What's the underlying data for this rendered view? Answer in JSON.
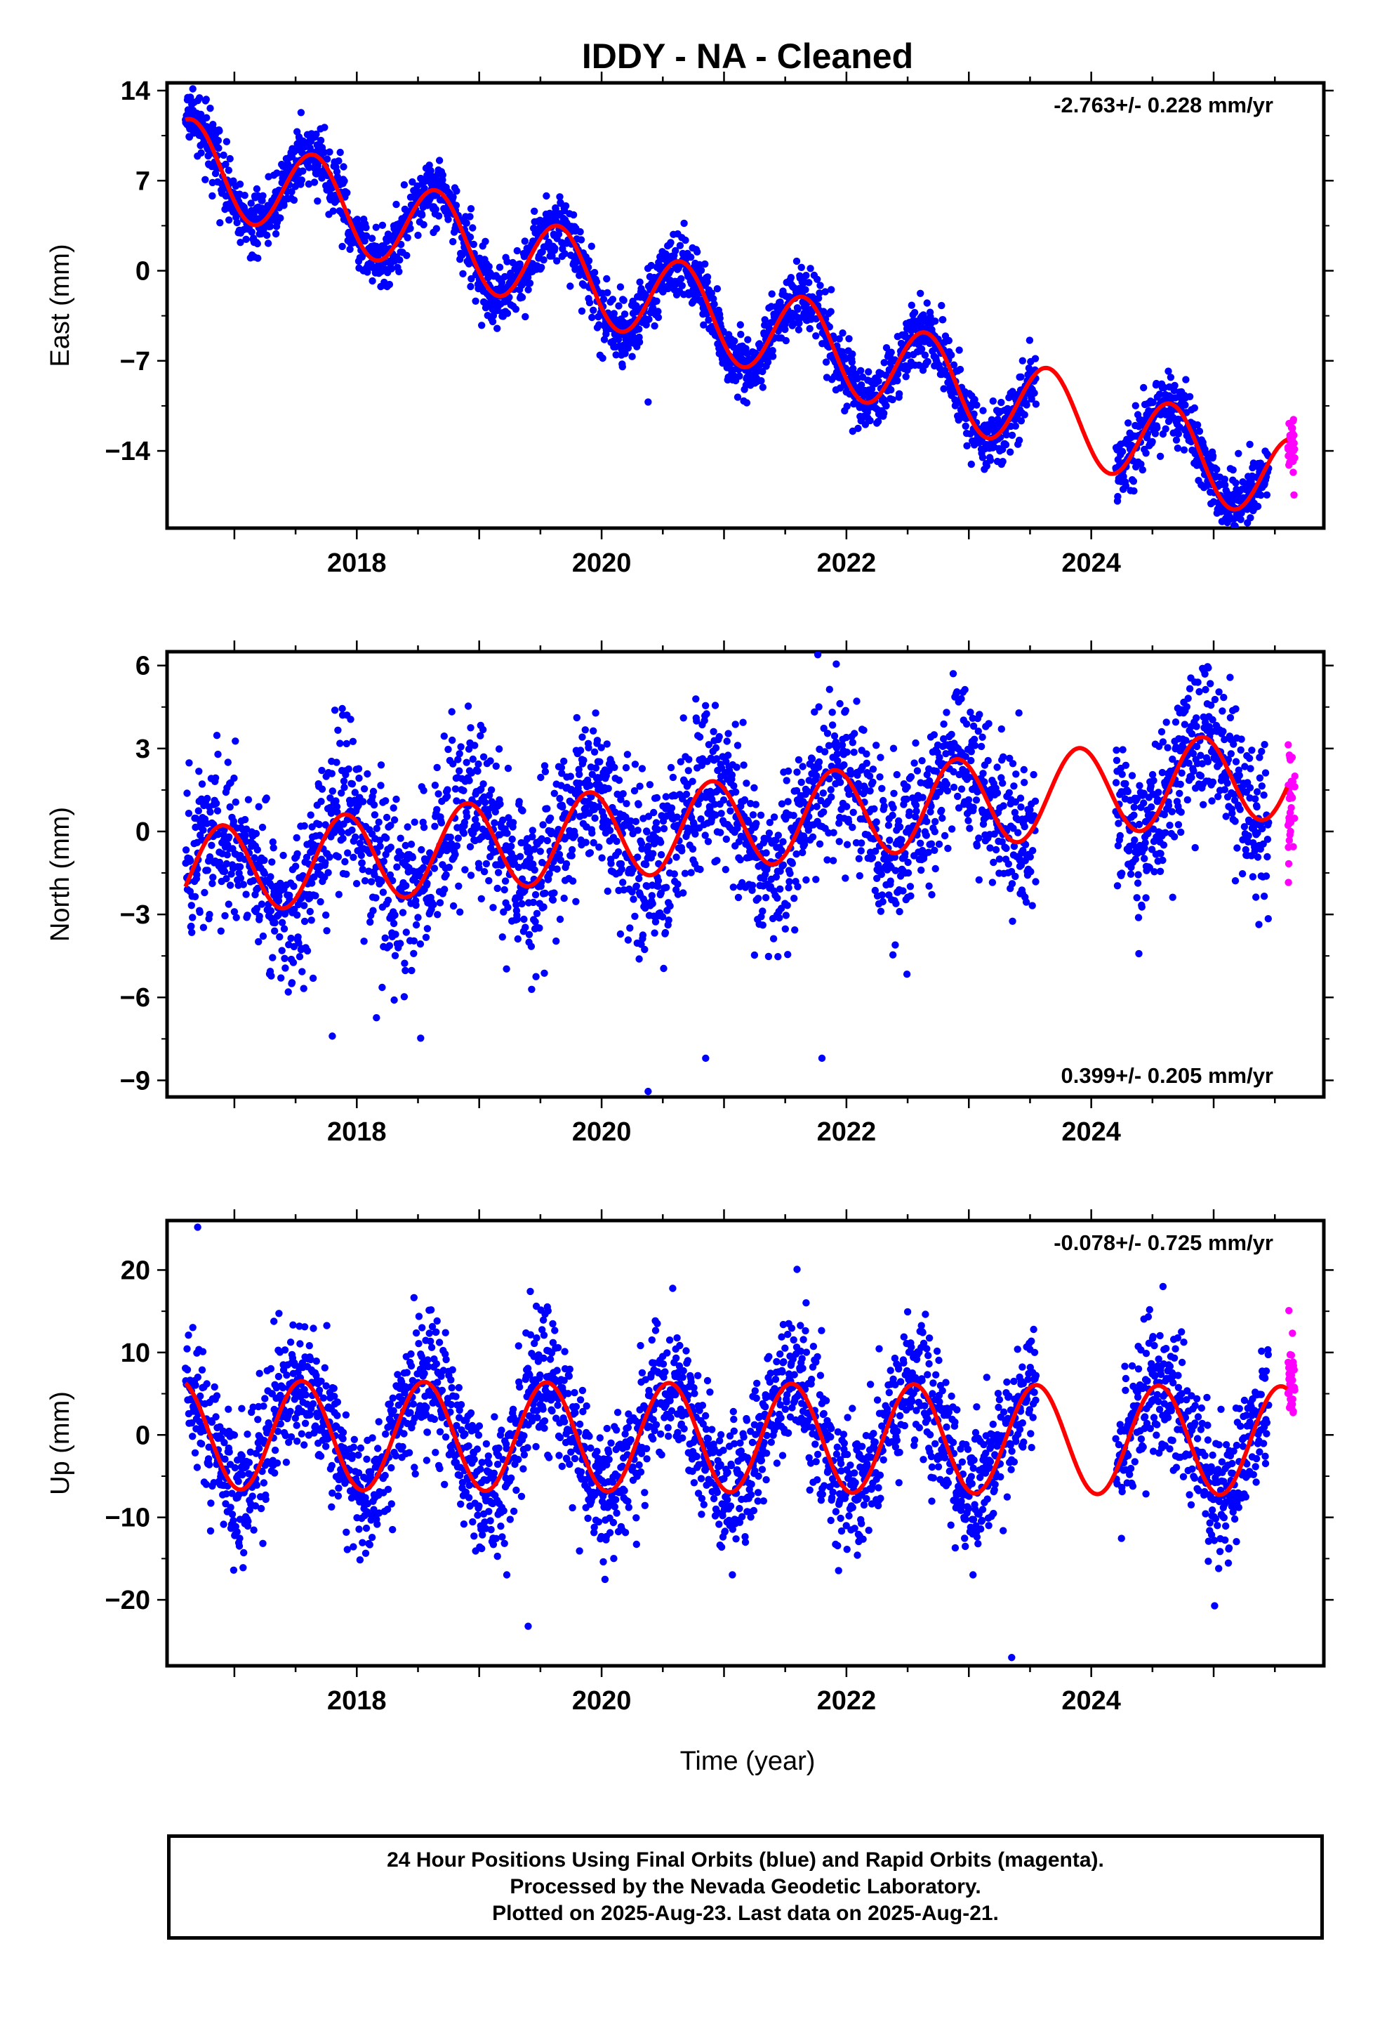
{
  "title": "IDDY  - NA - Cleaned",
  "xlabel": "Time (year)",
  "colors": {
    "final": "#0000ff",
    "rapid": "#ff00ff",
    "model": "#ff0000",
    "axes": "#000000"
  },
  "footer": {
    "line1": "24 Hour Positions Using Final Orbits (blue) and Rapid Orbits (magenta).",
    "line2": "Processed by the Nevada Geodetic Laboratory.",
    "line3": "Plotted on 2025-Aug-23. Last data on 2025-Aug-21."
  },
  "chart_data": [
    {
      "type": "scatter",
      "id": "east",
      "ylabel": "East (mm)",
      "rate_label": "-2.763+/- 0.228 mm/yr",
      "rate_position": "top-right",
      "xlim": [
        2016.45,
        2025.9
      ],
      "ylim": [
        -20,
        14.6
      ],
      "xticks": [
        2018,
        2020,
        2022,
        2024
      ],
      "yticks": [
        14,
        7,
        0,
        -7,
        -14
      ],
      "trend": {
        "t0": 2016.6,
        "y0": 8.5,
        "slope": -2.763,
        "amp": 3.4,
        "phase_year": 2016.65
      },
      "noise": 1.25,
      "gaps": [
        [
          2023.55,
          2024.2
        ]
      ],
      "final_range": [
        2016.6,
        2025.45
      ],
      "rapid_range": [
        2025.45,
        2025.63
      ],
      "outliers": [
        [
          2020.38,
          -10.2
        ],
        [
          2025.3,
          -19.2
        ]
      ]
    },
    {
      "type": "scatter",
      "id": "north",
      "ylabel": "North (mm)",
      "rate_label": "0.399+/- 0.205 mm/yr",
      "rate_position": "bottom-right",
      "xlim": [
        2016.45,
        2025.9
      ],
      "ylim": [
        -9.6,
        6.5
      ],
      "xticks": [
        2018,
        2020,
        2022,
        2024
      ],
      "yticks": [
        6,
        3,
        0,
        -3,
        -6,
        -9
      ],
      "trend": {
        "t0": 2016.6,
        "y0": -1.5,
        "slope": 0.399,
        "amp": 1.6,
        "phase_year": 2016.9
      },
      "noise": 1.45,
      "gaps": [
        [
          2023.55,
          2024.2
        ]
      ],
      "final_range": [
        2016.6,
        2025.45
      ],
      "rapid_range": [
        2025.45,
        2025.63
      ],
      "outliers": [
        [
          2020.38,
          -9.4
        ],
        [
          2020.85,
          -8.2
        ],
        [
          2021.8,
          -8.2
        ],
        [
          2017.8,
          -7.4
        ]
      ]
    },
    {
      "type": "scatter",
      "id": "up",
      "ylabel": "Up (mm)",
      "rate_label": "-0.078+/- 0.725 mm/yr",
      "rate_position": "top-right",
      "xlim": [
        2016.45,
        2025.9
      ],
      "ylim": [
        -28,
        26
      ],
      "xticks": [
        2018,
        2020,
        2022,
        2024
      ],
      "yticks": [
        20,
        10,
        0,
        -10,
        -20
      ],
      "trend": {
        "t0": 2016.6,
        "y0": 0,
        "slope": -0.078,
        "amp": 6.6,
        "phase_year": 2016.55
      },
      "noise": 4.2,
      "gaps": [
        [
          2023.55,
          2024.2
        ]
      ],
      "final_range": [
        2016.6,
        2025.45
      ],
      "rapid_range": [
        2025.45,
        2025.63
      ],
      "outliers": [
        [
          2016.7,
          25.2
        ],
        [
          2019.4,
          -23.2
        ],
        [
          2023.35,
          -27.0
        ]
      ]
    }
  ]
}
